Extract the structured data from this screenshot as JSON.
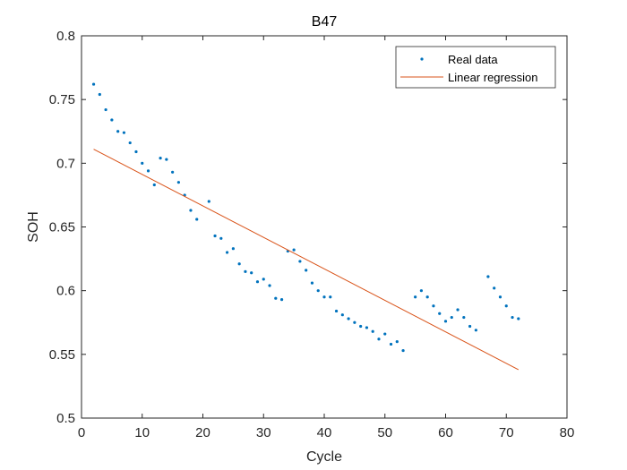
{
  "chart_data": {
    "type": "scatter",
    "title": "B47",
    "xlabel": "Cycle",
    "ylabel": "SOH",
    "xlim": [
      0,
      80
    ],
    "ylim": [
      0.5,
      0.8
    ],
    "xticks": [
      0,
      10,
      20,
      30,
      40,
      50,
      60,
      70,
      80
    ],
    "yticks": [
      0.5,
      0.55,
      0.6,
      0.65,
      0.7,
      0.75,
      0.8
    ],
    "xtick_labels": [
      "0",
      "10",
      "20",
      "30",
      "40",
      "50",
      "60",
      "70",
      "80"
    ],
    "ytick_labels": [
      "0.5",
      "0.55",
      "0.6",
      "0.65",
      "0.7",
      "0.75",
      "0.8"
    ],
    "grid": false,
    "legend_position": "top-right",
    "series": [
      {
        "name": "Real data",
        "kind": "scatter",
        "color": "#0072bd",
        "x": [
          2,
          3,
          4,
          5,
          6,
          7,
          8,
          9,
          10,
          11,
          12,
          13,
          14,
          15,
          16,
          17,
          18,
          19,
          21,
          22,
          23,
          24,
          25,
          26,
          27,
          28,
          29,
          30,
          31,
          32,
          33,
          34,
          35,
          36,
          37,
          38,
          39,
          40,
          41,
          42,
          43,
          44,
          45,
          46,
          47,
          48,
          49,
          50,
          51,
          52,
          53,
          55,
          56,
          57,
          58,
          59,
          60,
          61,
          62,
          63,
          64,
          65,
          67,
          68,
          69,
          70,
          71,
          72
        ],
        "y": [
          0.762,
          0.754,
          0.742,
          0.734,
          0.725,
          0.724,
          0.716,
          0.709,
          0.7,
          0.694,
          0.683,
          0.704,
          0.703,
          0.693,
          0.685,
          0.675,
          0.663,
          0.656,
          0.67,
          0.643,
          0.641,
          0.63,
          0.633,
          0.621,
          0.615,
          0.614,
          0.607,
          0.609,
          0.604,
          0.594,
          0.593,
          0.631,
          0.632,
          0.623,
          0.616,
          0.606,
          0.6,
          0.595,
          0.595,
          0.584,
          0.581,
          0.578,
          0.575,
          0.572,
          0.571,
          0.568,
          0.562,
          0.566,
          0.558,
          0.56,
          0.553,
          0.595,
          0.6,
          0.595,
          0.588,
          0.582,
          0.576,
          0.579,
          0.585,
          0.579,
          0.572,
          0.569,
          0.611,
          0.602,
          0.595,
          0.588,
          0.579,
          0.578
        ]
      },
      {
        "name": "Linear regression",
        "kind": "line",
        "color": "#d95319",
        "x": [
          2,
          72
        ],
        "y": [
          0.711,
          0.538
        ]
      }
    ]
  }
}
